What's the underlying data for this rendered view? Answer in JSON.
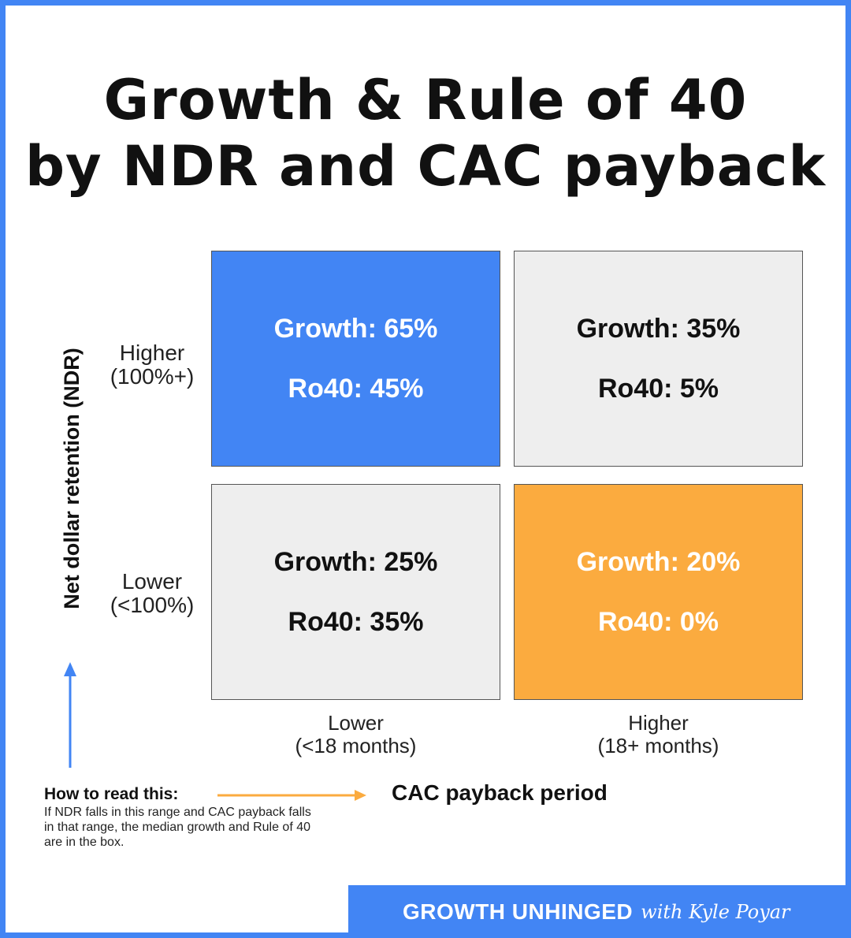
{
  "title": {
    "line1": "Growth & Rule of 40",
    "line2": "by NDR and CAC payback"
  },
  "y_axis": {
    "label": "Net dollar retention (NDR)",
    "rows": [
      {
        "label": "Higher",
        "range": "(100%+)"
      },
      {
        "label": "Lower",
        "range": "(<100%)"
      }
    ]
  },
  "x_axis": {
    "label": "CAC payback period",
    "columns": [
      {
        "label": "Lower",
        "range": "(<18 months)"
      },
      {
        "label": "Higher",
        "range": "(18+ months)"
      }
    ]
  },
  "cells": {
    "higher_ndr_lower_cac": {
      "growth": "Growth: 65%",
      "ro40": "Ro40: 45%"
    },
    "higher_ndr_higher_cac": {
      "growth": "Growth: 35%",
      "ro40": "Ro40: 5%"
    },
    "lower_ndr_lower_cac": {
      "growth": "Growth: 25%",
      "ro40": "Ro40: 35%"
    },
    "lower_ndr_higher_cac": {
      "growth": "Growth: 20%",
      "ro40": "Ro40: 0%"
    }
  },
  "howto": {
    "title": "How to read this:",
    "body": "If NDR falls in this range and CAC payback falls in that range, the median growth and Rule of 40 are in the box."
  },
  "footer": {
    "brand": "GROWTH UNHINGED",
    "byline": "with Kyle Poyar"
  },
  "colors": {
    "blue": "#4285f4",
    "orange": "#fbab3f",
    "gray": "#eeeeee"
  }
}
